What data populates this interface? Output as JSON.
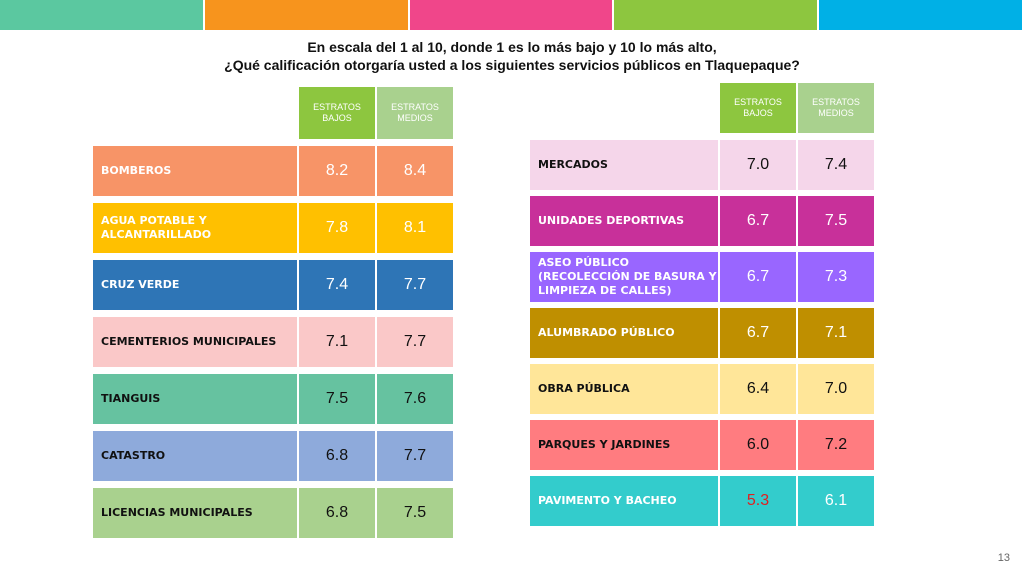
{
  "colors": {
    "top_bar": [
      "#5bc8a0",
      "#f7941d",
      "#f0468a",
      "#8dc63f",
      "#00b0e6"
    ],
    "hdr_bajos": "#8dc63f",
    "hdr_medios": "#a9d18e",
    "highlight_low": "#e02020"
  },
  "title": {
    "line1": "En escala del 1 al 10, donde 1 es lo más bajo y 10 lo más alto,",
    "line2": "¿Qué calificación otorgaría usted a los siguientes servicios públicos en Tlaquepaque?"
  },
  "chart_data": {
    "type": "table",
    "columns": [
      "ESTRATOS BAJOS",
      "ESTRATOS MEDIOS"
    ],
    "left": [
      {
        "label": "BOMBEROS",
        "bajos": 8.2,
        "medios": 8.4,
        "color": "#f79467",
        "text_color": "#ffffff"
      },
      {
        "label": "AGUA POTABLE Y ALCANTARILLADO",
        "bajos": 7.8,
        "medios": 8.1,
        "color": "#ffc000",
        "text_color": "#ffffff"
      },
      {
        "label": "CRUZ VERDE",
        "bajos": 7.4,
        "medios": 7.7,
        "color": "#2e75b6",
        "text_color": "#ffffff"
      },
      {
        "label": "CEMENTERIOS MUNICIPALES",
        "bajos": 7.1,
        "medios": 7.7,
        "color": "#fac8c8",
        "text_color": "#111111"
      },
      {
        "label": "TIANGUIS",
        "bajos": 7.5,
        "medios": 7.6,
        "color": "#66c2a0",
        "text_color": "#111111"
      },
      {
        "label": "CATASTRO",
        "bajos": 6.8,
        "medios": 7.7,
        "color": "#8eaadb",
        "text_color": "#111111"
      },
      {
        "label": "LICENCIAS MUNICIPALES",
        "bajos": 6.8,
        "medios": 7.5,
        "color": "#a9d18e",
        "text_color": "#111111"
      }
    ],
    "right": [
      {
        "label": "MERCADOS",
        "bajos": 7.0,
        "medios": 7.4,
        "color": "#f5d6ea",
        "text_color": "#111111"
      },
      {
        "label": "UNIDADES DEPORTIVAS",
        "bajos": 6.7,
        "medios": 7.5,
        "color": "#c8309a",
        "text_color": "#ffffff"
      },
      {
        "label": "ASEO PÚBLICO (RECOLECCIÓN DE BASURA Y LIMPIEZA DE CALLES)",
        "bajos": 6.7,
        "medios": 7.3,
        "color": "#9966ff",
        "text_color": "#ffffff"
      },
      {
        "label": "ALUMBRADO PÚBLICO",
        "bajos": 6.7,
        "medios": 7.1,
        "color": "#bf8f00",
        "text_color": "#ffffff"
      },
      {
        "label": "OBRA PÚBLICA",
        "bajos": 6.4,
        "medios": 7.0,
        "color": "#ffe699",
        "text_color": "#111111"
      },
      {
        "label": "PARQUES Y JARDINES",
        "bajos": 6.0,
        "medios": 7.2,
        "color": "#ff7c80",
        "text_color": "#111111"
      },
      {
        "label": "PAVIMENTO Y BACHEO",
        "bajos": 5.3,
        "medios": 6.1,
        "color": "#33cccc",
        "text_color": "#ffffff",
        "low_highlight": true
      }
    ]
  },
  "page_number": "13"
}
